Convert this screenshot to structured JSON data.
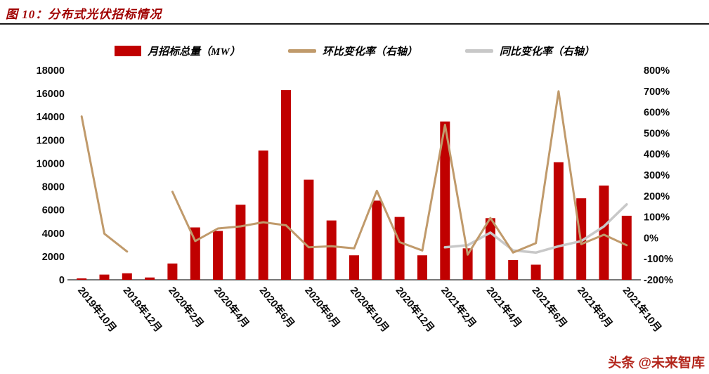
{
  "page": {
    "title": "图 10：分布式光伏招标情况",
    "watermark": "头条 @未来智库"
  },
  "legend": [
    {
      "label": "月招标总量（MW）",
      "marker": "bar",
      "color": "#C00000"
    },
    {
      "label": "环比变化率（右轴）",
      "marker": "line",
      "color": "#C09A6B"
    },
    {
      "label": "同比变化率（右轴）",
      "marker": "line",
      "color": "#C8C8C8"
    }
  ],
  "chart_data": {
    "type": "bar",
    "title": "图 10：分布式光伏招标情况",
    "categories": [
      "2019年10月",
      "2019年11月",
      "2019年12月",
      "2020年1月",
      "2020年2月",
      "2020年3月",
      "2020年4月",
      "2020年5月",
      "2020年6月",
      "2020年7月",
      "2020年8月",
      "2020年9月",
      "2020年10月",
      "2020年11月",
      "2020年12月",
      "2021年1月",
      "2021年2月",
      "2021年3月",
      "2021年4月",
      "2021年5月",
      "2021年6月",
      "2021年7月",
      "2021年8月",
      "2021年9月",
      "2021年10月"
    ],
    "x_tick_step": 2,
    "series": [
      {
        "name": "月招标总量（MW）",
        "type": "bar",
        "axis": "left",
        "color": "#C00000",
        "values": [
          120,
          450,
          560,
          200,
          1400,
          4500,
          4200,
          6450,
          11100,
          16300,
          8600,
          5100,
          2100,
          6800,
          5400,
          2100,
          13600,
          2700,
          5300,
          1700,
          1300,
          10100,
          7000,
          8100,
          5500
        ]
      },
      {
        "name": "环比变化率（右轴）",
        "type": "line",
        "axis": "right",
        "color": "#C09A6B",
        "values": [
          580,
          20,
          -65,
          null,
          220,
          -15,
          45,
          55,
          75,
          60,
          -45,
          -40,
          -50,
          225,
          -20,
          -60,
          540,
          -80,
          95,
          -70,
          -25,
          700,
          -30,
          15,
          -35
        ]
      },
      {
        "name": "同比变化率（右轴）",
        "type": "line",
        "axis": "right",
        "color": "#C8C8C8",
        "values": [
          null,
          null,
          null,
          null,
          null,
          null,
          null,
          null,
          null,
          null,
          null,
          null,
          null,
          null,
          null,
          null,
          -45,
          -35,
          25,
          -60,
          -70,
          -40,
          -15,
          55,
          160
        ]
      }
    ],
    "left_axis": {
      "min": 0,
      "max": 18000,
      "step": 2000,
      "suffix": ""
    },
    "right_axis": {
      "min": -200,
      "max": 800,
      "step": 100,
      "suffix": "%"
    },
    "grid": false,
    "legend_position": "top"
  }
}
